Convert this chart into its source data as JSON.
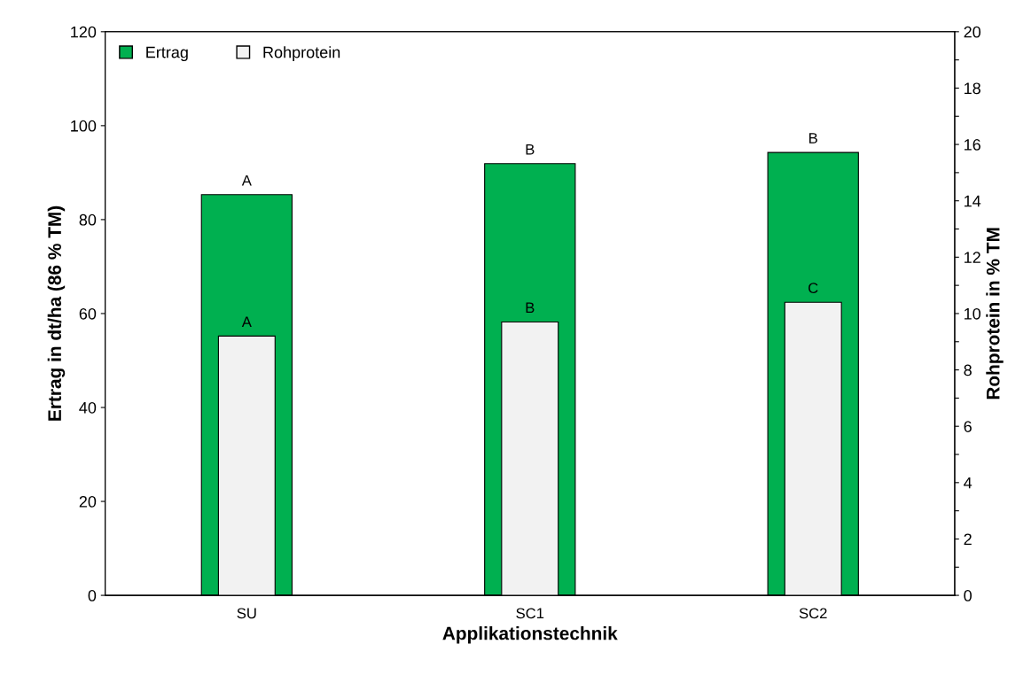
{
  "chart_data": {
    "type": "bar",
    "xlabel": "Applikationstechnik",
    "ylabel": "Ertrag in dt/ha (86 % TM)",
    "y2label": "Rohprotein in % TM",
    "categories": [
      "SU",
      "SC1",
      "SC2"
    ],
    "series": [
      {
        "name": "Ertrag",
        "color": "#00b050",
        "values": [
          85.3,
          91.9,
          94.3
        ],
        "value_labels": [
          "A",
          "B",
          "B"
        ]
      },
      {
        "name": "Rohprotein",
        "color": "#f2f2f2",
        "axis": "y2",
        "values": [
          9.2,
          9.7,
          10.4
        ],
        "value_labels": [
          "A",
          "B",
          "C"
        ]
      }
    ],
    "ylim": [
      0,
      120
    ],
    "yticks": [
      0,
      20,
      40,
      60,
      80,
      100,
      120
    ],
    "y2lim": [
      0,
      20
    ],
    "y2ticks": [
      0,
      {
        "value": 1,
        "label": null
      },
      2,
      {
        "value": 3,
        "label": null
      },
      4,
      {
        "value": 5,
        "label": null
      },
      6,
      {
        "value": 7,
        "label": null
      },
      8,
      {
        "value": 9,
        "label": null
      },
      10,
      {
        "value": 11,
        "label": null
      },
      12,
      {
        "value": 13,
        "label": null
      },
      14,
      {
        "value": 15,
        "label": null
      },
      16,
      {
        "value": 17,
        "label": null
      },
      18,
      {
        "value": 19,
        "label": null
      },
      20
    ],
    "grid": false,
    "legend": "top left"
  }
}
